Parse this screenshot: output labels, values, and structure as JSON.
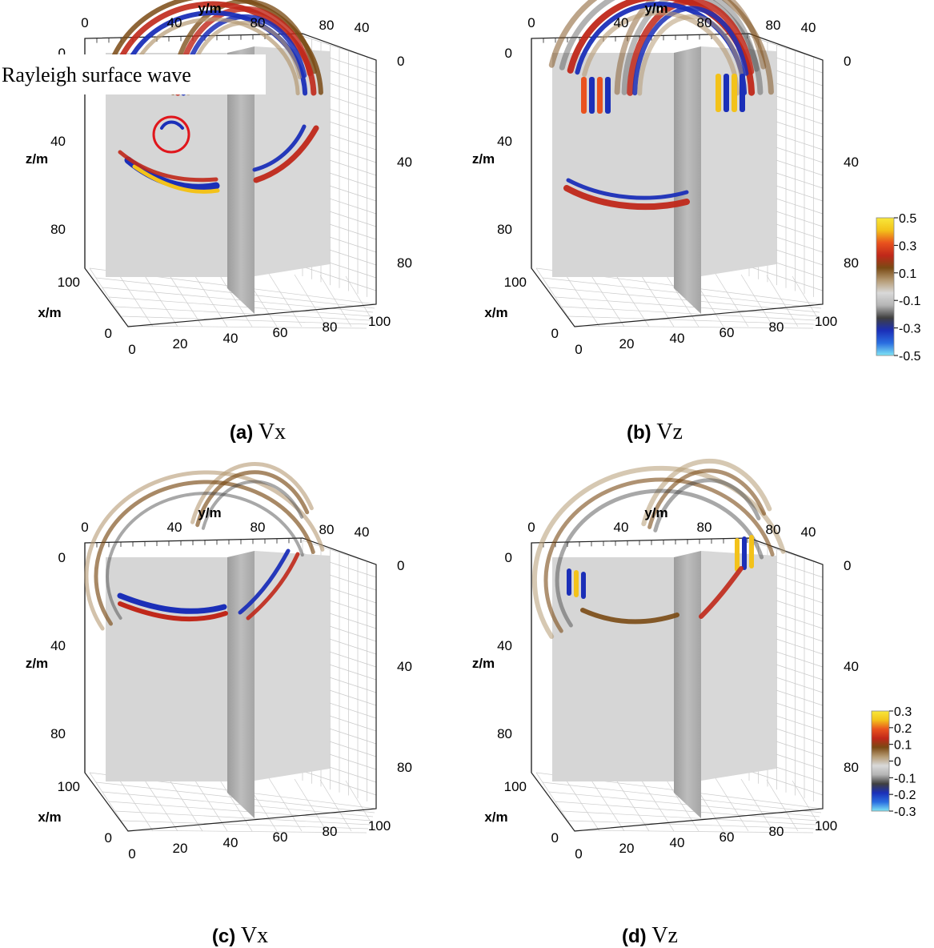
{
  "panels": [
    {
      "id": "a",
      "letter": "(a)",
      "variable": "Vx",
      "component": "vx",
      "snapshot": 1,
      "annotation": "Rayleigh surface wave",
      "axes": {
        "y_label": "y/m",
        "z_label": "z/m",
        "x_label": "x/m",
        "top_ticks": [
          "0",
          "40",
          "80",
          "80",
          "40"
        ],
        "left_z_ticks": [
          "0",
          "40",
          "80"
        ],
        "right_z_ticks": [
          "0",
          "40",
          "80"
        ],
        "x_depth_ticks": [
          "100",
          "0"
        ],
        "bottom_ticks": [
          "0",
          "20",
          "40",
          "60",
          "80",
          "100"
        ]
      }
    },
    {
      "id": "b",
      "letter": "(b)",
      "variable": "Vz",
      "component": "vz",
      "snapshot": 1,
      "annotation": "",
      "axes": {
        "y_label": "y/m",
        "z_label": "z/m",
        "x_label": "x/m",
        "top_ticks": [
          "0",
          "40",
          "80",
          "80",
          "40"
        ],
        "left_z_ticks": [
          "0",
          "40",
          "80"
        ],
        "right_z_ticks": [
          "0",
          "40",
          "80"
        ],
        "x_depth_ticks": [
          "100",
          "0"
        ],
        "bottom_ticks": [
          "0",
          "20",
          "40",
          "60",
          "80",
          "100"
        ]
      }
    },
    {
      "id": "c",
      "letter": "(c)",
      "variable": "Vx",
      "component": "vx",
      "snapshot": 2,
      "annotation": "",
      "axes": {
        "y_label": "y/m",
        "z_label": "z/m",
        "x_label": "x/m",
        "top_ticks": [
          "0",
          "40",
          "80",
          "80",
          "40"
        ],
        "left_z_ticks": [
          "0",
          "40",
          "80"
        ],
        "right_z_ticks": [
          "0",
          "40",
          "80"
        ],
        "x_depth_ticks": [
          "100",
          "0"
        ],
        "bottom_ticks": [
          "0",
          "20",
          "40",
          "60",
          "80",
          "100"
        ]
      }
    },
    {
      "id": "d",
      "letter": "(d)",
      "variable": "Vz",
      "component": "vz",
      "snapshot": 2,
      "annotation": "",
      "axes": {
        "y_label": "y/m",
        "z_label": "z/m",
        "x_label": "x/m",
        "top_ticks": [
          "0",
          "40",
          "80",
          "80",
          "40"
        ],
        "left_z_ticks": [
          "0",
          "40",
          "80"
        ],
        "right_z_ticks": [
          "0",
          "40",
          "80"
        ],
        "x_depth_ticks": [
          "100",
          "0"
        ],
        "bottom_ticks": [
          "0",
          "20",
          "40",
          "60",
          "80",
          "100"
        ]
      }
    }
  ],
  "colorbars": [
    {
      "id": "top",
      "applies_to": [
        "a",
        "b"
      ],
      "min": -0.5,
      "max": 0.5,
      "tick_labels": [
        "0.5",
        "0.3",
        "0.1",
        "-0.1",
        "-0.3",
        "-0.5"
      ]
    },
    {
      "id": "bottom",
      "applies_to": [
        "c",
        "d"
      ],
      "min": -0.3,
      "max": 0.3,
      "tick_labels": [
        "0.3",
        "0.2",
        "0.1",
        "0",
        "-0.1",
        "-0.2",
        "-0.3"
      ]
    }
  ],
  "colormap": [
    "#7fe5f5",
    "#2a6de0",
    "#1b2fb8",
    "#3f3f3f",
    "#b4b4b4",
    "#d9d9d9",
    "#b59a73",
    "#7a4a14",
    "#c0281a",
    "#e9521e",
    "#f3c21a",
    "#f8e83a"
  ],
  "chart_data": [
    {
      "type": "heatmap",
      "panel": "a",
      "field": "Vx",
      "x_range": [
        0,
        100
      ],
      "y_range": [
        0,
        100
      ],
      "z_range": [
        0,
        100
      ],
      "color_range": [
        -0.5,
        0.5
      ],
      "x_label": "x/m",
      "y_label": "y/m",
      "z_label": "z/m"
    },
    {
      "type": "heatmap",
      "panel": "b",
      "field": "Vz",
      "x_range": [
        0,
        100
      ],
      "y_range": [
        0,
        100
      ],
      "z_range": [
        0,
        100
      ],
      "color_range": [
        -0.5,
        0.5
      ],
      "x_label": "x/m",
      "y_label": "y/m",
      "z_label": "z/m"
    },
    {
      "type": "heatmap",
      "panel": "c",
      "field": "Vx",
      "x_range": [
        0,
        100
      ],
      "y_range": [
        0,
        100
      ],
      "z_range": [
        0,
        100
      ],
      "color_range": [
        -0.3,
        0.3
      ],
      "x_label": "x/m",
      "y_label": "y/m",
      "z_label": "z/m"
    },
    {
      "type": "heatmap",
      "panel": "d",
      "field": "Vz",
      "x_range": [
        0,
        100
      ],
      "y_range": [
        0,
        100
      ],
      "z_range": [
        0,
        100
      ],
      "color_range": [
        -0.3,
        0.3
      ],
      "x_label": "x/m",
      "y_label": "y/m",
      "z_label": "z/m"
    }
  ]
}
